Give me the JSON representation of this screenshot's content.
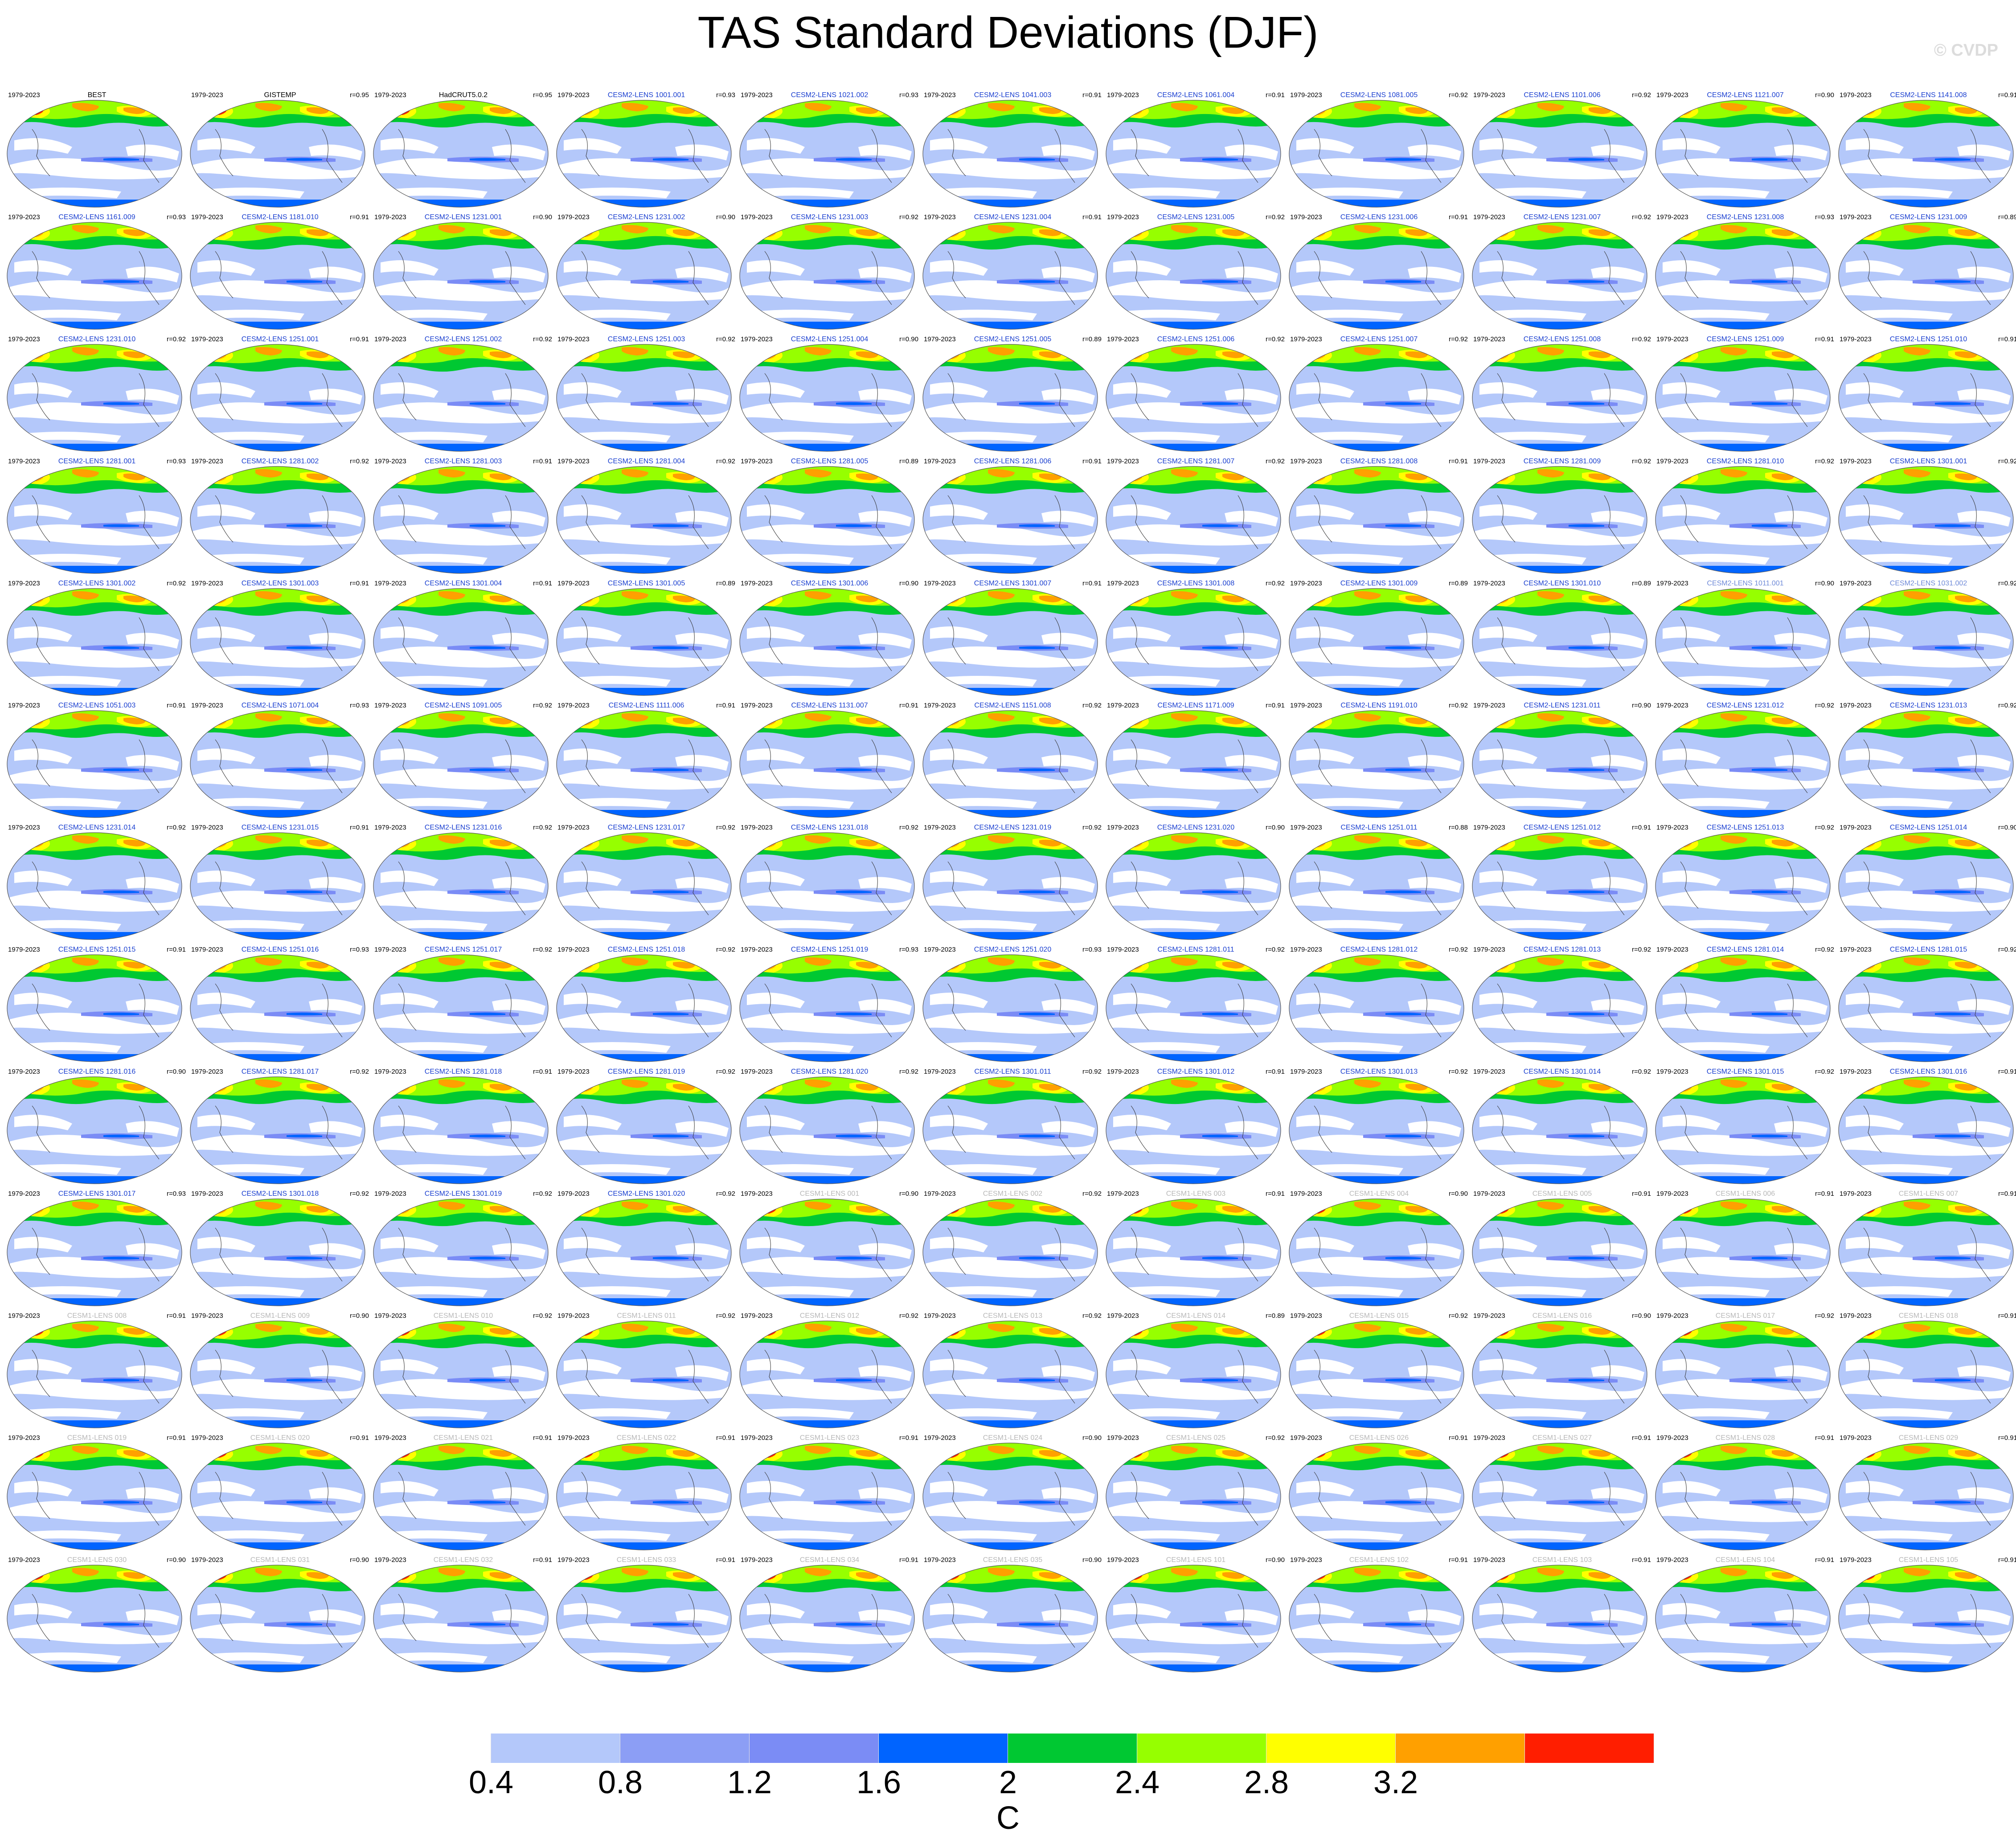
{
  "title": "TAS Standard Deviations (DJF)",
  "watermark": "© CVDP",
  "panel_period": "1979-2023",
  "panel_name_colors": {
    "obs": "#000000",
    "cesm2": "#1a3fd0",
    "cesm2_faded": "#6f8ad8",
    "cesm1": "#b8b8b8"
  },
  "panels": [
    {
      "name": "BEST",
      "corr": "",
      "group": "obs"
    },
    {
      "name": "GISTEMP",
      "corr": "r=0.95",
      "group": "obs"
    },
    {
      "name": "HadCRUT5.0.2",
      "corr": "r=0.95",
      "group": "obs"
    },
    {
      "name": "CESM2-LENS 1001.001",
      "corr": "r=0.93",
      "group": "cesm2"
    },
    {
      "name": "CESM2-LENS 1021.002",
      "corr": "r=0.93",
      "group": "cesm2"
    },
    {
      "name": "CESM2-LENS 1041.003",
      "corr": "r=0.91",
      "group": "cesm2"
    },
    {
      "name": "CESM2-LENS 1061.004",
      "corr": "r=0.91",
      "group": "cesm2"
    },
    {
      "name": "CESM2-LENS 1081.005",
      "corr": "r=0.92",
      "group": "cesm2"
    },
    {
      "name": "CESM2-LENS 1101.006",
      "corr": "r=0.92",
      "group": "cesm2"
    },
    {
      "name": "CESM2-LENS 1121.007",
      "corr": "r=0.90",
      "group": "cesm2"
    },
    {
      "name": "CESM2-LENS 1141.008",
      "corr": "r=0.91",
      "group": "cesm2"
    },
    {
      "name": "CESM2-LENS 1161.009",
      "corr": "r=0.93",
      "group": "cesm2"
    },
    {
      "name": "CESM2-LENS 1181.010",
      "corr": "r=0.91",
      "group": "cesm2"
    },
    {
      "name": "CESM2-LENS 1231.001",
      "corr": "r=0.90",
      "group": "cesm2"
    },
    {
      "name": "CESM2-LENS 1231.002",
      "corr": "r=0.90",
      "group": "cesm2"
    },
    {
      "name": "CESM2-LENS 1231.003",
      "corr": "r=0.92",
      "group": "cesm2"
    },
    {
      "name": "CESM2-LENS 1231.004",
      "corr": "r=0.91",
      "group": "cesm2"
    },
    {
      "name": "CESM2-LENS 1231.005",
      "corr": "r=0.92",
      "group": "cesm2"
    },
    {
      "name": "CESM2-LENS 1231.006",
      "corr": "r=0.91",
      "group": "cesm2"
    },
    {
      "name": "CESM2-LENS 1231.007",
      "corr": "r=0.92",
      "group": "cesm2"
    },
    {
      "name": "CESM2-LENS 1231.008",
      "corr": "r=0.93",
      "group": "cesm2"
    },
    {
      "name": "CESM2-LENS 1231.009",
      "corr": "r=0.89",
      "group": "cesm2"
    },
    {
      "name": "CESM2-LENS 1231.010",
      "corr": "r=0.92",
      "group": "cesm2"
    },
    {
      "name": "CESM2-LENS 1251.001",
      "corr": "r=0.91",
      "group": "cesm2"
    },
    {
      "name": "CESM2-LENS 1251.002",
      "corr": "r=0.92",
      "group": "cesm2"
    },
    {
      "name": "CESM2-LENS 1251.003",
      "corr": "r=0.92",
      "group": "cesm2"
    },
    {
      "name": "CESM2-LENS 1251.004",
      "corr": "r=0.90",
      "group": "cesm2"
    },
    {
      "name": "CESM2-LENS 1251.005",
      "corr": "r=0.89",
      "group": "cesm2"
    },
    {
      "name": "CESM2-LENS 1251.006",
      "corr": "r=0.92",
      "group": "cesm2"
    },
    {
      "name": "CESM2-LENS 1251.007",
      "corr": "r=0.92",
      "group": "cesm2"
    },
    {
      "name": "CESM2-LENS 1251.008",
      "corr": "r=0.92",
      "group": "cesm2"
    },
    {
      "name": "CESM2-LENS 1251.009",
      "corr": "r=0.91",
      "group": "cesm2"
    },
    {
      "name": "CESM2-LENS 1251.010",
      "corr": "r=0.91",
      "group": "cesm2"
    },
    {
      "name": "CESM2-LENS 1281.001",
      "corr": "r=0.93",
      "group": "cesm2"
    },
    {
      "name": "CESM2-LENS 1281.002",
      "corr": "r=0.92",
      "group": "cesm2"
    },
    {
      "name": "CESM2-LENS 1281.003",
      "corr": "r=0.91",
      "group": "cesm2"
    },
    {
      "name": "CESM2-LENS 1281.004",
      "corr": "r=0.92",
      "group": "cesm2"
    },
    {
      "name": "CESM2-LENS 1281.005",
      "corr": "r=0.89",
      "group": "cesm2"
    },
    {
      "name": "CESM2-LENS 1281.006",
      "corr": "r=0.91",
      "group": "cesm2"
    },
    {
      "name": "CESM2-LENS 1281.007",
      "corr": "r=0.92",
      "group": "cesm2"
    },
    {
      "name": "CESM2-LENS 1281.008",
      "corr": "r=0.91",
      "group": "cesm2"
    },
    {
      "name": "CESM2-LENS 1281.009",
      "corr": "r=0.92",
      "group": "cesm2"
    },
    {
      "name": "CESM2-LENS 1281.010",
      "corr": "r=0.92",
      "group": "cesm2"
    },
    {
      "name": "CESM2-LENS 1301.001",
      "corr": "r=0.92",
      "group": "cesm2"
    },
    {
      "name": "CESM2-LENS 1301.002",
      "corr": "r=0.92",
      "group": "cesm2"
    },
    {
      "name": "CESM2-LENS 1301.003",
      "corr": "r=0.91",
      "group": "cesm2"
    },
    {
      "name": "CESM2-LENS 1301.004",
      "corr": "r=0.91",
      "group": "cesm2"
    },
    {
      "name": "CESM2-LENS 1301.005",
      "corr": "r=0.89",
      "group": "cesm2"
    },
    {
      "name": "CESM2-LENS 1301.006",
      "corr": "r=0.90",
      "group": "cesm2"
    },
    {
      "name": "CESM2-LENS 1301.007",
      "corr": "r=0.91",
      "group": "cesm2"
    },
    {
      "name": "CESM2-LENS 1301.008",
      "corr": "r=0.92",
      "group": "cesm2"
    },
    {
      "name": "CESM2-LENS 1301.009",
      "corr": "r=0.89",
      "group": "cesm2"
    },
    {
      "name": "CESM2-LENS 1301.010",
      "corr": "r=0.89",
      "group": "cesm2"
    },
    {
      "name": "CESM2-LENS 1011.001",
      "corr": "r=0.90",
      "group": "cesm2_faded"
    },
    {
      "name": "CESM2-LENS 1031.002",
      "corr": "r=0.92",
      "group": "cesm2_faded"
    },
    {
      "name": "CESM2-LENS 1051.003",
      "corr": "r=0.91",
      "group": "cesm2"
    },
    {
      "name": "CESM2-LENS 1071.004",
      "corr": "r=0.93",
      "group": "cesm2"
    },
    {
      "name": "CESM2-LENS 1091.005",
      "corr": "r=0.92",
      "group": "cesm2"
    },
    {
      "name": "CESM2-LENS 1111.006",
      "corr": "r=0.91",
      "group": "cesm2"
    },
    {
      "name": "CESM2-LENS 1131.007",
      "corr": "r=0.91",
      "group": "cesm2"
    },
    {
      "name": "CESM2-LENS 1151.008",
      "corr": "r=0.92",
      "group": "cesm2"
    },
    {
      "name": "CESM2-LENS 1171.009",
      "corr": "r=0.91",
      "group": "cesm2"
    },
    {
      "name": "CESM2-LENS 1191.010",
      "corr": "r=0.92",
      "group": "cesm2"
    },
    {
      "name": "CESM2-LENS 1231.011",
      "corr": "r=0.90",
      "group": "cesm2"
    },
    {
      "name": "CESM2-LENS 1231.012",
      "corr": "r=0.92",
      "group": "cesm2"
    },
    {
      "name": "CESM2-LENS 1231.013",
      "corr": "r=0.92",
      "group": "cesm2"
    },
    {
      "name": "CESM2-LENS 1231.014",
      "corr": "r=0.92",
      "group": "cesm2"
    },
    {
      "name": "CESM2-LENS 1231.015",
      "corr": "r=0.91",
      "group": "cesm2"
    },
    {
      "name": "CESM2-LENS 1231.016",
      "corr": "r=0.92",
      "group": "cesm2"
    },
    {
      "name": "CESM2-LENS 1231.017",
      "corr": "r=0.92",
      "group": "cesm2"
    },
    {
      "name": "CESM2-LENS 1231.018",
      "corr": "r=0.92",
      "group": "cesm2"
    },
    {
      "name": "CESM2-LENS 1231.019",
      "corr": "r=0.92",
      "group": "cesm2"
    },
    {
      "name": "CESM2-LENS 1231.020",
      "corr": "r=0.90",
      "group": "cesm2"
    },
    {
      "name": "CESM2-LENS 1251.011",
      "corr": "r=0.88",
      "group": "cesm2"
    },
    {
      "name": "CESM2-LENS 1251.012",
      "corr": "r=0.91",
      "group": "cesm2"
    },
    {
      "name": "CESM2-LENS 1251.013",
      "corr": "r=0.92",
      "group": "cesm2"
    },
    {
      "name": "CESM2-LENS 1251.014",
      "corr": "r=0.90",
      "group": "cesm2"
    },
    {
      "name": "CESM2-LENS 1251.015",
      "corr": "r=0.91",
      "group": "cesm2"
    },
    {
      "name": "CESM2-LENS 1251.016",
      "corr": "r=0.93",
      "group": "cesm2"
    },
    {
      "name": "CESM2-LENS 1251.017",
      "corr": "r=0.92",
      "group": "cesm2"
    },
    {
      "name": "CESM2-LENS 1251.018",
      "corr": "r=0.92",
      "group": "cesm2"
    },
    {
      "name": "CESM2-LENS 1251.019",
      "corr": "r=0.93",
      "group": "cesm2"
    },
    {
      "name": "CESM2-LENS 1251.020",
      "corr": "r=0.93",
      "group": "cesm2"
    },
    {
      "name": "CESM2-LENS 1281.011",
      "corr": "r=0.92",
      "group": "cesm2"
    },
    {
      "name": "CESM2-LENS 1281.012",
      "corr": "r=0.92",
      "group": "cesm2"
    },
    {
      "name": "CESM2-LENS 1281.013",
      "corr": "r=0.92",
      "group": "cesm2"
    },
    {
      "name": "CESM2-LENS 1281.014",
      "corr": "r=0.92",
      "group": "cesm2"
    },
    {
      "name": "CESM2-LENS 1281.015",
      "corr": "r=0.92",
      "group": "cesm2"
    },
    {
      "name": "CESM2-LENS 1281.016",
      "corr": "r=0.90",
      "group": "cesm2"
    },
    {
      "name": "CESM2-LENS 1281.017",
      "corr": "r=0.92",
      "group": "cesm2"
    },
    {
      "name": "CESM2-LENS 1281.018",
      "corr": "r=0.91",
      "group": "cesm2"
    },
    {
      "name": "CESM2-LENS 1281.019",
      "corr": "r=0.92",
      "group": "cesm2"
    },
    {
      "name": "CESM2-LENS 1281.020",
      "corr": "r=0.92",
      "group": "cesm2"
    },
    {
      "name": "CESM2-LENS 1301.011",
      "corr": "r=0.92",
      "group": "cesm2"
    },
    {
      "name": "CESM2-LENS 1301.012",
      "corr": "r=0.91",
      "group": "cesm2"
    },
    {
      "name": "CESM2-LENS 1301.013",
      "corr": "r=0.92",
      "group": "cesm2"
    },
    {
      "name": "CESM2-LENS 1301.014",
      "corr": "r=0.92",
      "group": "cesm2"
    },
    {
      "name": "CESM2-LENS 1301.015",
      "corr": "r=0.92",
      "group": "cesm2"
    },
    {
      "name": "CESM2-LENS 1301.016",
      "corr": "r=0.91",
      "group": "cesm2"
    },
    {
      "name": "CESM2-LENS 1301.017",
      "corr": "r=0.93",
      "group": "cesm2"
    },
    {
      "name": "CESM2-LENS 1301.018",
      "corr": "r=0.92",
      "group": "cesm2"
    },
    {
      "name": "CESM2-LENS 1301.019",
      "corr": "r=0.92",
      "group": "cesm2"
    },
    {
      "name": "CESM2-LENS 1301.020",
      "corr": "r=0.92",
      "group": "cesm2"
    },
    {
      "name": "CESM1-LENS 001",
      "corr": "r=0.90",
      "group": "cesm1"
    },
    {
      "name": "CESM1-LENS 002",
      "corr": "r=0.92",
      "group": "cesm1"
    },
    {
      "name": "CESM1-LENS 003",
      "corr": "r=0.91",
      "group": "cesm1"
    },
    {
      "name": "CESM1-LENS 004",
      "corr": "r=0.90",
      "group": "cesm1"
    },
    {
      "name": "CESM1-LENS 005",
      "corr": "r=0.91",
      "group": "cesm1"
    },
    {
      "name": "CESM1-LENS 006",
      "corr": "r=0.91",
      "group": "cesm1"
    },
    {
      "name": "CESM1-LENS 007",
      "corr": "r=0.91",
      "group": "cesm1"
    },
    {
      "name": "CESM1-LENS 008",
      "corr": "r=0.91",
      "group": "cesm1"
    },
    {
      "name": "CESM1-LENS 009",
      "corr": "r=0.90",
      "group": "cesm1"
    },
    {
      "name": "CESM1-LENS 010",
      "corr": "r=0.92",
      "group": "cesm1"
    },
    {
      "name": "CESM1-LENS 011",
      "corr": "r=0.92",
      "group": "cesm1"
    },
    {
      "name": "CESM1-LENS 012",
      "corr": "r=0.92",
      "group": "cesm1"
    },
    {
      "name": "CESM1-LENS 013",
      "corr": "r=0.92",
      "group": "cesm1"
    },
    {
      "name": "CESM1-LENS 014",
      "corr": "r=0.89",
      "group": "cesm1"
    },
    {
      "name": "CESM1-LENS 015",
      "corr": "r=0.92",
      "group": "cesm1"
    },
    {
      "name": "CESM1-LENS 016",
      "corr": "r=0.90",
      "group": "cesm1"
    },
    {
      "name": "CESM1-LENS 017",
      "corr": "r=0.92",
      "group": "cesm1"
    },
    {
      "name": "CESM1-LENS 018",
      "corr": "r=0.91",
      "group": "cesm1"
    },
    {
      "name": "CESM1-LENS 019",
      "corr": "r=0.91",
      "group": "cesm1"
    },
    {
      "name": "CESM1-LENS 020",
      "corr": "r=0.91",
      "group": "cesm1"
    },
    {
      "name": "CESM1-LENS 021",
      "corr": "r=0.91",
      "group": "cesm1"
    },
    {
      "name": "CESM1-LENS 022",
      "corr": "r=0.91",
      "group": "cesm1"
    },
    {
      "name": "CESM1-LENS 023",
      "corr": "r=0.91",
      "group": "cesm1"
    },
    {
      "name": "CESM1-LENS 024",
      "corr": "r=0.90",
      "group": "cesm1"
    },
    {
      "name": "CESM1-LENS 025",
      "corr": "r=0.92",
      "group": "cesm1"
    },
    {
      "name": "CESM1-LENS 026",
      "corr": "r=0.91",
      "group": "cesm1"
    },
    {
      "name": "CESM1-LENS 027",
      "corr": "r=0.91",
      "group": "cesm1"
    },
    {
      "name": "CESM1-LENS 028",
      "corr": "r=0.91",
      "group": "cesm1"
    },
    {
      "name": "CESM1-LENS 029",
      "corr": "r=0.91",
      "group": "cesm1"
    },
    {
      "name": "CESM1-LENS 030",
      "corr": "r=0.90",
      "group": "cesm1"
    },
    {
      "name": "CESM1-LENS 031",
      "corr": "r=0.90",
      "group": "cesm1"
    },
    {
      "name": "CESM1-LENS 032",
      "corr": "r=0.91",
      "group": "cesm1"
    },
    {
      "name": "CESM1-LENS 033",
      "corr": "r=0.91",
      "group": "cesm1"
    },
    {
      "name": "CESM1-LENS 034",
      "corr": "r=0.91",
      "group": "cesm1"
    },
    {
      "name": "CESM1-LENS 035",
      "corr": "r=0.90",
      "group": "cesm1"
    },
    {
      "name": "CESM1-LENS 101",
      "corr": "r=0.90",
      "group": "cesm1"
    },
    {
      "name": "CESM1-LENS 102",
      "corr": "r=0.91",
      "group": "cesm1"
    },
    {
      "name": "CESM1-LENS 103",
      "corr": "r=0.91",
      "group": "cesm1"
    },
    {
      "name": "CESM1-LENS 104",
      "corr": "r=0.91",
      "group": "cesm1"
    },
    {
      "name": "CESM1-LENS 105",
      "corr": "r=0.91",
      "group": "cesm1"
    }
  ],
  "colorbar": {
    "colors": [
      "#ffffff",
      "#b4c8fa",
      "#8c9ef5",
      "#7b8cf5",
      "#0064ff",
      "#00c832",
      "#96ff00",
      "#ffff00",
      "#ffa000",
      "#ff1e00"
    ],
    "tick_labels": [
      "0.4",
      "0.8",
      "1.2",
      "1.6",
      "2",
      "2.4",
      "2.8",
      "3.2"
    ],
    "unit": "C"
  }
}
